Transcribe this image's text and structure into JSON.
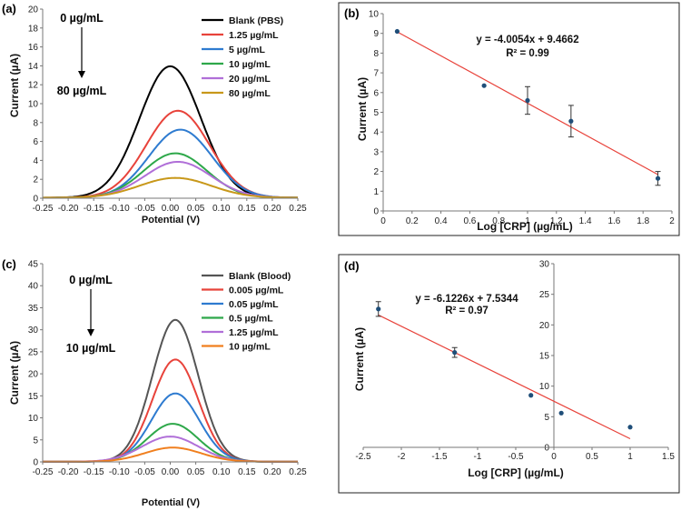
{
  "chart_data": [
    {
      "id": "a",
      "panel_label": "(a)",
      "type": "line",
      "xlabel": "Potential (V)",
      "ylabel": "Current (µA)",
      "xlim": [
        -0.25,
        0.25
      ],
      "ylim": [
        0,
        20
      ],
      "xticks": [
        -0.25,
        -0.2,
        -0.15,
        -0.1,
        -0.05,
        0,
        0.05,
        0.1,
        0.15,
        0.2,
        0.25
      ],
      "xtick_labels": [
        "-0.25",
        "-0.20",
        "-0.15",
        "-0.10",
        "-0.05",
        "0.00",
        "0.05",
        "0.10",
        "0.15",
        "0.20",
        "0.25"
      ],
      "yticks": [
        0,
        2,
        4,
        6,
        8,
        10,
        12,
        14,
        16,
        18,
        20
      ],
      "ytick_labels": [
        "0",
        "2",
        "4",
        "6",
        "8",
        "10",
        "12",
        "14",
        "16",
        "18",
        "20"
      ],
      "annotation_top": "0 µg/mL",
      "annotation_bottom": "80 µg/mL",
      "series": [
        {
          "name": "Blank (PBS)",
          "color": "#000000",
          "peak": 13.9,
          "center": 0.0,
          "width": 0.06
        },
        {
          "name": "1.25 µg/mL",
          "color": "#e8433b",
          "peak": 9.2,
          "center": 0.015,
          "width": 0.062
        },
        {
          "name": "5 µg/mL",
          "color": "#2e7bd0",
          "peak": 7.2,
          "center": 0.02,
          "width": 0.062
        },
        {
          "name": "10 µg/mL",
          "color": "#2ea84a",
          "peak": 4.7,
          "center": 0.01,
          "width": 0.062
        },
        {
          "name": "20 µg/mL",
          "color": "#b06fd8",
          "peak": 3.8,
          "center": 0.015,
          "width": 0.065
        },
        {
          "name": "80 µg/mL",
          "color": "#c8981a",
          "peak": 2.1,
          "center": 0.01,
          "width": 0.07
        }
      ]
    },
    {
      "id": "b",
      "panel_label": "(b)",
      "type": "scatter",
      "xlabel": "Log [CRP] (µg/mL)",
      "ylabel": "Current (µA)",
      "xlim": [
        0,
        2
      ],
      "ylim": [
        0,
        10
      ],
      "xticks": [
        0,
        0.2,
        0.4,
        0.6,
        0.8,
        1,
        1.2,
        1.4,
        1.6,
        1.8,
        2
      ],
      "xtick_labels": [
        "0",
        "0.2",
        "0.4",
        "0.6",
        "0.8",
        "1",
        "1.2",
        "1.4",
        "1.6",
        "1.8",
        "2"
      ],
      "yticks": [
        0,
        1,
        2,
        3,
        4,
        5,
        6,
        7,
        8,
        9,
        10
      ],
      "ytick_labels": [
        "0",
        "1",
        "2",
        "3",
        "4",
        "5",
        "6",
        "7",
        "8",
        "9",
        "10"
      ],
      "points": [
        {
          "x": 0.097,
          "y": 9.1,
          "err": 0
        },
        {
          "x": 0.699,
          "y": 6.35,
          "err": 0
        },
        {
          "x": 1.0,
          "y": 5.6,
          "err": 0.7
        },
        {
          "x": 1.301,
          "y": 4.55,
          "err": 0.8
        },
        {
          "x": 1.903,
          "y": 1.65,
          "err": 0.35
        }
      ],
      "fit": {
        "slope": -4.0054,
        "intercept": 9.4662,
        "x_range": [
          0.097,
          1.903
        ],
        "color": "#e8433b"
      },
      "equation": "y = -4.0054x + 9.4662",
      "r2": "R² = 0.99"
    },
    {
      "id": "c",
      "panel_label": "(c)",
      "type": "line",
      "xlabel": "Potential (V)",
      "ylabel": "Current (µA)",
      "xlim": [
        -0.25,
        0.25
      ],
      "ylim": [
        0,
        45
      ],
      "xticks": [
        -0.25,
        -0.2,
        -0.15,
        -0.1,
        -0.05,
        0,
        0.05,
        0.1,
        0.15,
        0.2,
        0.25
      ],
      "xtick_labels": [
        "-0.25",
        "-0.20",
        "-0.15",
        "-0.10",
        "-0.05",
        "0.00",
        "0.05",
        "0.10",
        "0.15",
        "0.20",
        "0.25"
      ],
      "yticks": [
        0,
        5,
        10,
        15,
        20,
        25,
        30,
        35,
        40,
        45
      ],
      "ytick_labels": [
        "0",
        "5",
        "10",
        "15",
        "20",
        "25",
        "30",
        "35",
        "40",
        "45"
      ],
      "annotation_top": "0 µg/mL",
      "annotation_bottom": "10 µg/mL",
      "series": [
        {
          "name": "Blank (Blood)",
          "color": "#555555",
          "peak": 32.2,
          "center": 0.01,
          "width": 0.045
        },
        {
          "name": "0.005 µg/mL",
          "color": "#e8433b",
          "peak": 23.2,
          "center": 0.01,
          "width": 0.045
        },
        {
          "name": "0.05 µg/mL",
          "color": "#2e7bd0",
          "peak": 15.5,
          "center": 0.01,
          "width": 0.047
        },
        {
          "name": "0.5 µg/mL",
          "color": "#2ea84a",
          "peak": 8.6,
          "center": 0.005,
          "width": 0.05
        },
        {
          "name": "1.25 µg/mL",
          "color": "#b06fd8",
          "peak": 5.7,
          "center": 0.0,
          "width": 0.055
        },
        {
          "name": "10 µg/mL",
          "color": "#f07f1e",
          "peak": 3.2,
          "center": 0.005,
          "width": 0.055
        }
      ]
    },
    {
      "id": "d",
      "panel_label": "(d)",
      "type": "scatter",
      "xlabel": "Log [CRP] (µg/mL)",
      "ylabel": "Current (µA)",
      "xlim": [
        -2.5,
        1.5
      ],
      "ylim": [
        0,
        30
      ],
      "xticks": [
        -2.5,
        -2,
        -1.5,
        -1,
        -0.5,
        0,
        0.5,
        1,
        1.5
      ],
      "xtick_labels": [
        "-2.5",
        "-2",
        "-1.5",
        "-1",
        "-0.5",
        "0",
        "0.5",
        "1",
        "1.5"
      ],
      "yticks": [
        0,
        5,
        10,
        15,
        20,
        25,
        30
      ],
      "ytick_labels": [
        "0",
        "5",
        "10",
        "15",
        "20",
        "25",
        "30"
      ],
      "points": [
        {
          "x": -2.301,
          "y": 22.6,
          "err": 1.2
        },
        {
          "x": -1.301,
          "y": 15.5,
          "err": 0.8
        },
        {
          "x": -0.301,
          "y": 8.5,
          "err": 0
        },
        {
          "x": 0.097,
          "y": 5.6,
          "err": 0
        },
        {
          "x": 1.0,
          "y": 3.3,
          "err": 0
        }
      ],
      "fit": {
        "slope": -6.1226,
        "intercept": 7.5344,
        "x_range": [
          -2.301,
          1.0
        ],
        "color": "#e8433b"
      },
      "equation": "y = -6.1226x + 7.5344",
      "r2": "R² = 0.97"
    }
  ]
}
